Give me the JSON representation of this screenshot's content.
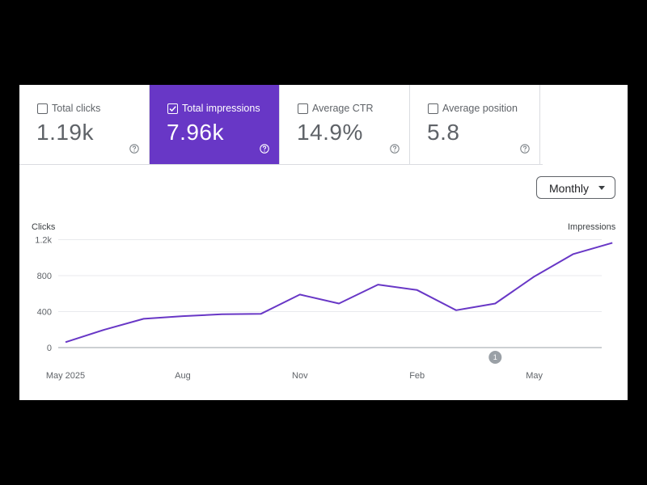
{
  "metrics": [
    {
      "label": "Total clicks",
      "value": "1.19k",
      "checked": false
    },
    {
      "label": "Total impressions",
      "value": "7.96k",
      "checked": true
    },
    {
      "label": "Average CTR",
      "value": "14.9%",
      "checked": false
    },
    {
      "label": "Average position",
      "value": "5.8",
      "checked": false
    }
  ],
  "period_select": {
    "label": "Monthly"
  },
  "colors": {
    "selected_metric": "#6837c6",
    "line": "#6837c6",
    "grid": "#e8eaed",
    "annotation": "#9aa0a6"
  },
  "icons": {
    "checkbox": "checkbox-icon",
    "help": "help-circle-icon",
    "dropdown": "caret-down-icon"
  },
  "chart_data": {
    "type": "line",
    "ylabel_left": "Clicks",
    "ylabel_right": "Impressions",
    "yticks": [
      0,
      400,
      800,
      1200
    ],
    "ytick_labels": [
      "0",
      "400",
      "800",
      "1.2k"
    ],
    "ylim": [
      0,
      1200
    ],
    "xtick_labels": [
      "May 2025",
      "Aug",
      "Nov",
      "Feb",
      "May"
    ],
    "x": [
      "May 2025",
      "Jun",
      "Jul",
      "Aug",
      "Sep",
      "Oct",
      "Nov",
      "Dec",
      "Jan",
      "Feb",
      "Mar",
      "Apr",
      "May",
      "Jun",
      "Jul"
    ],
    "series": [
      {
        "values": [
          60,
          200,
          320,
          350,
          370,
          375,
          590,
          490,
          700,
          640,
          415,
          490,
          790,
          1040,
          1165
        ]
      }
    ],
    "annotations": [
      {
        "label": "1",
        "x": "Apr"
      }
    ],
    "grid": true
  }
}
